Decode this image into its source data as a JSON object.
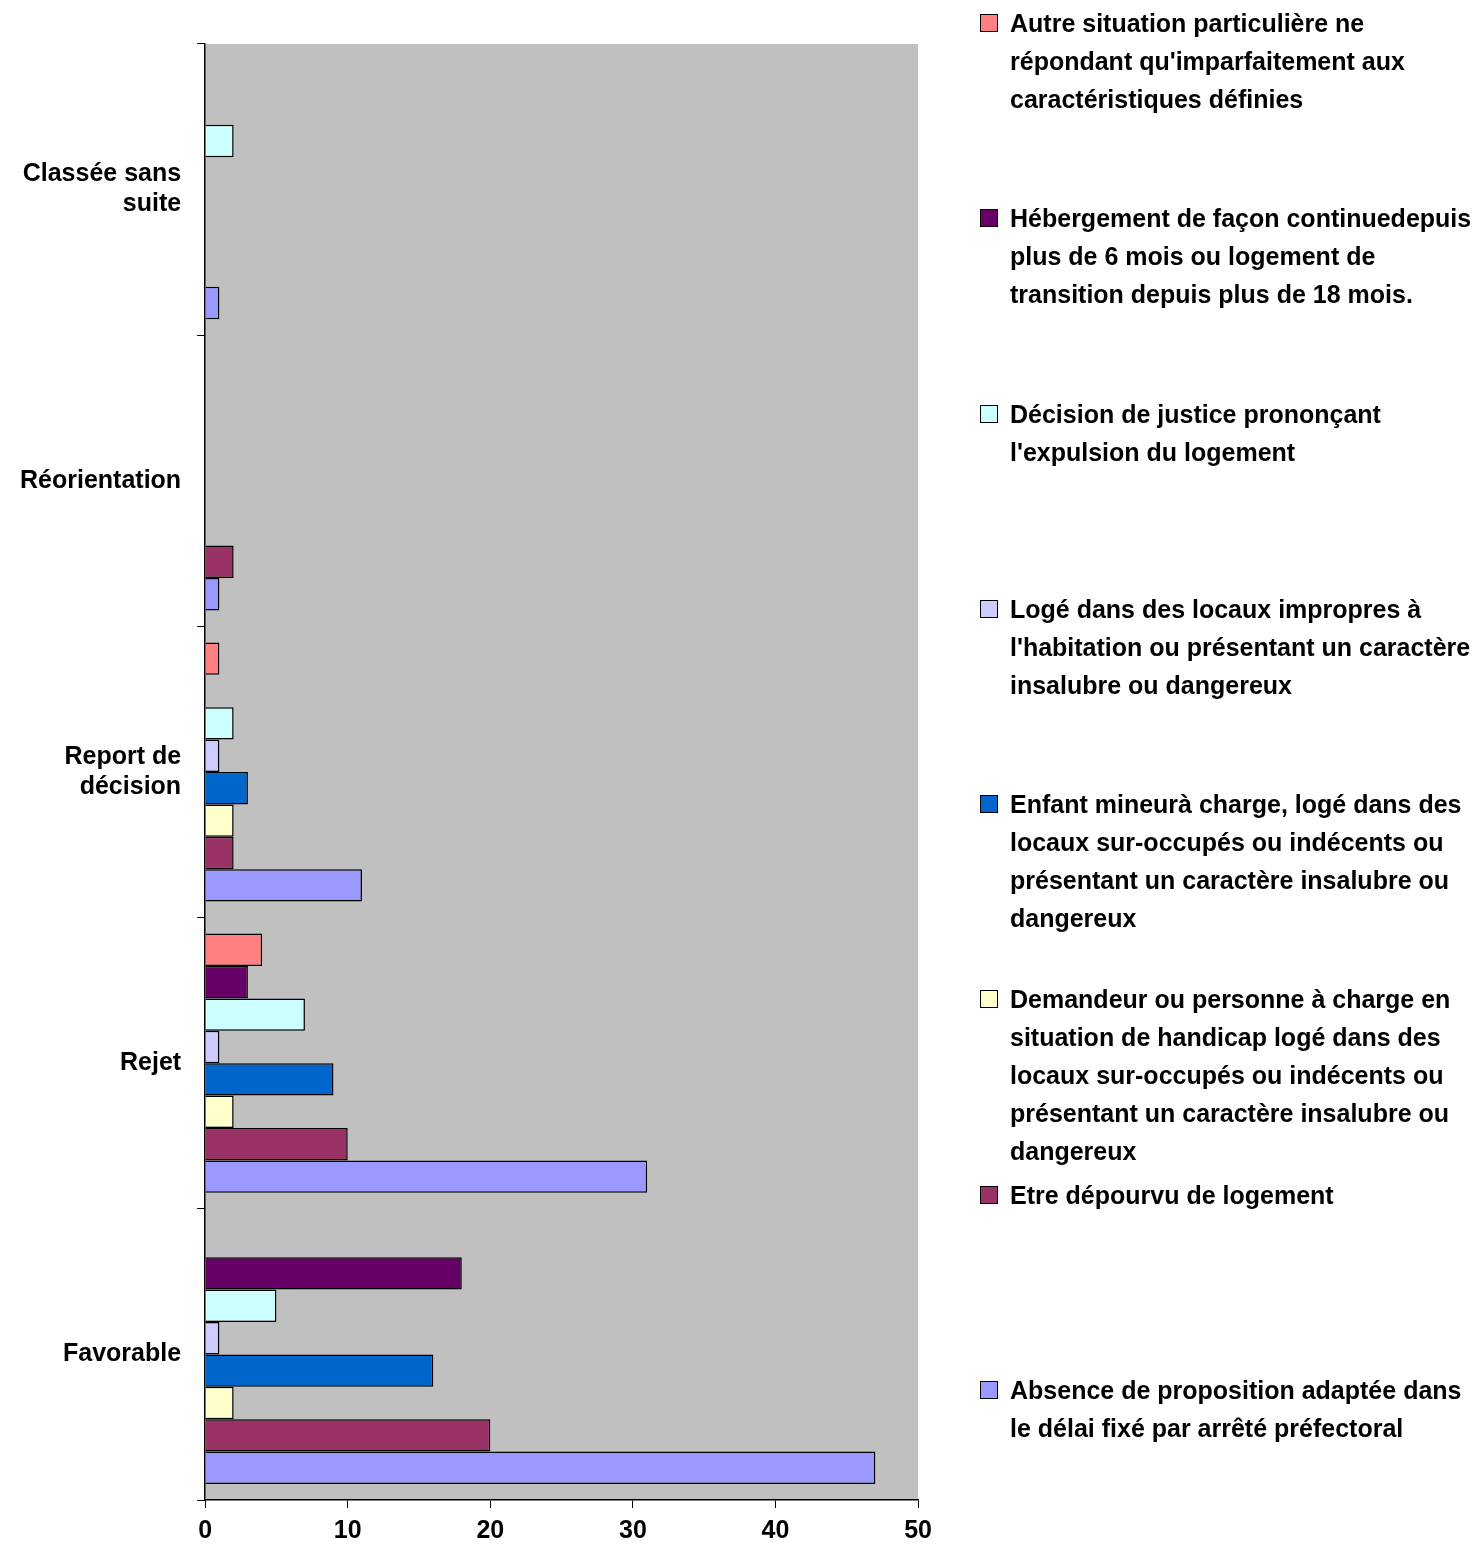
{
  "chart_data": {
    "type": "bar",
    "orientation": "horizontal",
    "categories": [
      "Classée sans suite",
      "Réorientation",
      "Report de décision",
      "Rejet",
      "Favorable"
    ],
    "series": [
      {
        "name": "Autre situation particulière ne répondant qu'imparfaitement aux caractéristiques définies",
        "color": "#ff8080",
        "values": [
          0,
          0,
          1,
          4,
          0
        ]
      },
      {
        "name": "Hébergement de façon continuedepuis plus de 6 mois ou logement de transition depuis plus de 18 mois.",
        "color": "#660066",
        "values": [
          0,
          0,
          0,
          3,
          18
        ]
      },
      {
        "name": "Décision de justice prononçant l'expulsion du logement",
        "color": "#ccffff",
        "values": [
          2,
          0,
          2,
          7,
          5
        ]
      },
      {
        "name": "Logé dans des locaux impropres à l'habitation ou présentant un caractère insalubre ou dangereux",
        "color": "#ccccff",
        "values": [
          0,
          0,
          1,
          1,
          1
        ]
      },
      {
        "name": "Enfant mineurà charge, logé dans des locaux sur-occupés ou indécents ou présentant un caractère insalubre ou dangereux",
        "color": "#0066cc",
        "values": [
          0,
          0,
          3,
          9,
          16
        ]
      },
      {
        "name": "Demandeur ou personne à charge en situation de handicap logé dans des locaux sur-occupés ou indécents ou présentant un caractère insalubre ou dangereux",
        "color": "#ffffcc",
        "values": [
          0,
          0,
          2,
          2,
          2
        ]
      },
      {
        "name": "Etre dépourvu de logement",
        "color": "#993366",
        "values": [
          0,
          2,
          2,
          10,
          20
        ]
      },
      {
        "name": "Absence de proposition adaptée dans le délai fixé par arrêté préfectoral",
        "color": "#9999ff",
        "values": [
          1,
          1,
          11,
          31,
          47
        ]
      }
    ],
    "xlim": [
      0,
      50
    ],
    "xticks": [
      0,
      10,
      20,
      30,
      40,
      50
    ],
    "grid": false,
    "legend": "right"
  }
}
